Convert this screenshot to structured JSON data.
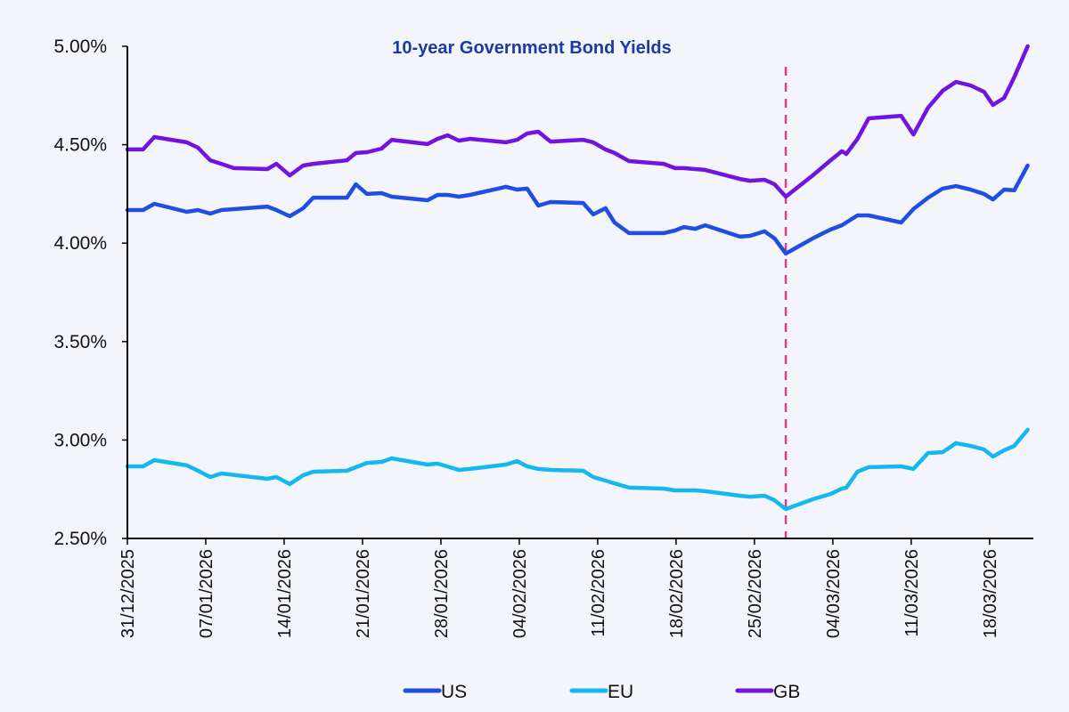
{
  "chart_data": {
    "type": "line",
    "title": "10-year Government Bond Yields",
    "xlabel": "",
    "ylabel": "",
    "x_unit": "days since 31/12/2025",
    "xlim": [
      0,
      81
    ],
    "ylim": [
      2.5,
      5.0
    ],
    "yticks": [
      {
        "value": 5.0,
        "label": "5.00%"
      },
      {
        "value": 4.5,
        "label": "4.50%"
      },
      {
        "value": 4.0,
        "label": "4.00%"
      },
      {
        "value": 3.5,
        "label": "3.50%"
      },
      {
        "value": 3.0,
        "label": "3.00%"
      },
      {
        "value": 2.5,
        "label": "2.50%"
      }
    ],
    "xticks": [
      {
        "day": 0,
        "label": "31/12/2025"
      },
      {
        "day": 7,
        "label": "07/01/2026"
      },
      {
        "day": 14,
        "label": "14/01/2026"
      },
      {
        "day": 21,
        "label": "21/01/2026"
      },
      {
        "day": 28,
        "label": "28/01/2026"
      },
      {
        "day": 35,
        "label": "04/02/2026"
      },
      {
        "day": 42,
        "label": "11/02/2026"
      },
      {
        "day": 49,
        "label": "18/02/2026"
      },
      {
        "day": 56,
        "label": "25/02/2026"
      },
      {
        "day": 63,
        "label": "04/03/2026"
      },
      {
        "day": 70,
        "label": "11/03/2026"
      },
      {
        "day": 77,
        "label": "18/03/2026"
      }
    ],
    "vline_day": 58.8,
    "vline_color": "#e8388a",
    "grid": false,
    "legend_position": "bottom",
    "series": [
      {
        "name": "US",
        "color": "#1f4fe0",
        "x": [
          0,
          1.4,
          2.4,
          5.3,
          6.3,
          7.4,
          8.4,
          12.5,
          13.3,
          14.5,
          15.7,
          16.6,
          19.6,
          20.4,
          21.4,
          22.7,
          23.6,
          26.8,
          27.7,
          28.6,
          29.6,
          30.6,
          33.8,
          34.8,
          35.7,
          36.7,
          37.8,
          40.7,
          41.6,
          42.7,
          43.5,
          44.8,
          47.9,
          48.9,
          49.7,
          50.7,
          51.6,
          54.7,
          55.6,
          56.9,
          57.8,
          58.8,
          61.2,
          62.8,
          63.8,
          65.2,
          66.2,
          69.1,
          70.2,
          71.5,
          72.8,
          74.0,
          75.3,
          76.5,
          77.3,
          78.3,
          79.2,
          80.4
        ],
        "y": [
          4.168,
          4.168,
          4.2,
          4.159,
          4.168,
          4.15,
          4.168,
          4.186,
          4.168,
          4.137,
          4.177,
          4.231,
          4.231,
          4.299,
          4.25,
          4.254,
          4.236,
          4.218,
          4.245,
          4.245,
          4.236,
          4.245,
          4.286,
          4.272,
          4.277,
          4.191,
          4.209,
          4.204,
          4.146,
          4.177,
          4.105,
          4.051,
          4.051,
          4.064,
          4.082,
          4.073,
          4.091,
          4.033,
          4.037,
          4.06,
          4.024,
          3.947,
          4.024,
          4.069,
          4.091,
          4.141,
          4.141,
          4.105,
          4.173,
          4.231,
          4.277,
          4.29,
          4.272,
          4.25,
          4.222,
          4.272,
          4.268,
          4.394
        ]
      },
      {
        "name": "EU",
        "color": "#14b8ee",
        "x": [
          0,
          1.4,
          2.4,
          5.3,
          6.3,
          7.4,
          8.4,
          12.5,
          13.3,
          14.5,
          15.7,
          16.6,
          19.6,
          21.4,
          22.7,
          23.6,
          26.8,
          27.7,
          29.6,
          30.6,
          33.8,
          34.8,
          35.7,
          36.7,
          37.8,
          40.7,
          41.6,
          42.7,
          43.5,
          44.8,
          47.9,
          48.9,
          49.7,
          50.7,
          51.6,
          54.7,
          55.6,
          56.9,
          57.8,
          58.8,
          61.2,
          62.8,
          63.8,
          64.2,
          65.2,
          66.2,
          69.1,
          70.2,
          71.5,
          72.8,
          74.0,
          75.3,
          76.5,
          77.3,
          78.3,
          79.2,
          80.4
        ],
        "y": [
          2.866,
          2.866,
          2.898,
          2.871,
          2.844,
          2.812,
          2.83,
          2.803,
          2.812,
          2.776,
          2.821,
          2.839,
          2.844,
          2.884,
          2.889,
          2.907,
          2.875,
          2.88,
          2.848,
          2.853,
          2.875,
          2.893,
          2.866,
          2.853,
          2.848,
          2.844,
          2.812,
          2.794,
          2.78,
          2.758,
          2.753,
          2.744,
          2.744,
          2.744,
          2.74,
          2.717,
          2.712,
          2.717,
          2.694,
          2.649,
          2.699,
          2.726,
          2.753,
          2.758,
          2.839,
          2.862,
          2.866,
          2.853,
          2.934,
          2.938,
          2.984,
          2.97,
          2.952,
          2.916,
          2.948,
          2.97,
          3.052
        ]
      },
      {
        "name": "GB",
        "color": "#7214e0",
        "x": [
          0,
          1.4,
          2.4,
          5.3,
          6.3,
          7.4,
          8.4,
          9.5,
          12.5,
          13.3,
          14.5,
          15.7,
          16.6,
          19.6,
          20.4,
          21.4,
          22.7,
          23.6,
          26.8,
          27.7,
          28.6,
          29.6,
          30.6,
          33.8,
          34.8,
          35.7,
          36.7,
          37.8,
          40.7,
          41.6,
          42.7,
          43.5,
          44.8,
          47.9,
          48.9,
          49.7,
          50.7,
          51.6,
          54.7,
          55.6,
          56.9,
          57.8,
          58.8,
          61.2,
          62.8,
          63.8,
          64.2,
          65.2,
          66.2,
          69.1,
          70.2,
          71.5,
          72.8,
          74.0,
          75.3,
          76.5,
          77.3,
          78.3,
          79.2,
          80.4
        ],
        "y": [
          4.476,
          4.476,
          4.539,
          4.512,
          4.485,
          4.421,
          4.403,
          4.381,
          4.376,
          4.403,
          4.344,
          4.394,
          4.403,
          4.421,
          4.458,
          4.462,
          4.48,
          4.525,
          4.503,
          4.53,
          4.548,
          4.521,
          4.53,
          4.512,
          4.525,
          4.557,
          4.566,
          4.516,
          4.525,
          4.512,
          4.476,
          4.458,
          4.417,
          4.403,
          4.381,
          4.381,
          4.376,
          4.372,
          4.326,
          4.317,
          4.322,
          4.299,
          4.236,
          4.344,
          4.421,
          4.467,
          4.453,
          4.53,
          4.634,
          4.647,
          4.552,
          4.688,
          4.774,
          4.819,
          4.801,
          4.769,
          4.702,
          4.738,
          4.842,
          5.0
        ]
      }
    ]
  }
}
